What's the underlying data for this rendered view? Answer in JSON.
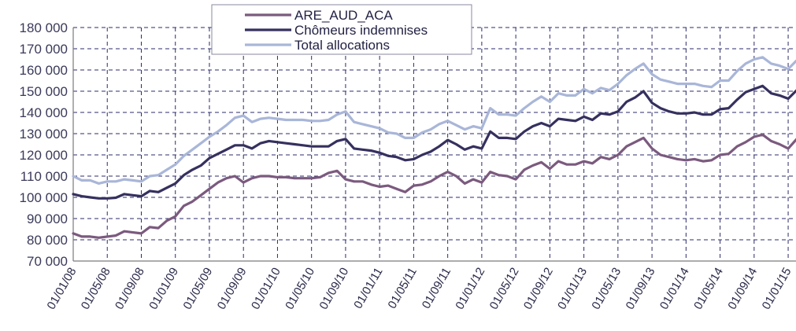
{
  "chart_data": {
    "type": "line",
    "title": "",
    "xlabel": "",
    "ylabel": "",
    "ylim": [
      70000,
      180000
    ],
    "y_ticks": [
      "70 000",
      "80 000",
      "90 000",
      "100 000",
      "110 000",
      "120 000",
      "130 000",
      "140 000",
      "150 000",
      "160 000",
      "170 000",
      "180 000"
    ],
    "x_ticks": [
      "01/01/08",
      "01/05/08",
      "01/09/08",
      "01/01/09",
      "01/05/09",
      "01/09/09",
      "01/01/10",
      "01/05/10",
      "01/09/10",
      "01/01/11",
      "01/05/11",
      "01/09/11",
      "01/01/12",
      "01/05/12",
      "01/09/12",
      "01/01/13",
      "01/05/13",
      "01/09/13",
      "01/01/14",
      "01/05/14",
      "01/09/14",
      "01/01/15"
    ],
    "grid": true,
    "legend_position": "top-center",
    "series": [
      {
        "name": "ARE_AUD_ACA",
        "color": "#7b5a7e",
        "values": [
          83000,
          81500,
          81500,
          81000,
          81500,
          82000,
          84000,
          83500,
          83000,
          86000,
          85500,
          89000,
          91000,
          96000,
          98000,
          101000,
          104000,
          107000,
          109000,
          110000,
          107000,
          109000,
          110000,
          110000,
          109500,
          109500,
          109000,
          109000,
          109000,
          109500,
          111500,
          112500,
          108500,
          107500,
          107500,
          106000,
          105000,
          105500,
          104000,
          102500,
          105500,
          106000,
          107500,
          110000,
          112000,
          110000,
          106500,
          108500,
          107000,
          112000,
          110500,
          110000,
          108500,
          113000,
          115000,
          116500,
          113500,
          117000,
          115500,
          115500,
          117000,
          116000,
          119000,
          118000,
          120000,
          124000,
          126000,
          128000,
          123000,
          120000,
          119000,
          118000,
          117500,
          118000,
          117000,
          117500,
          120000,
          120500,
          124000,
          126000,
          128500,
          129500,
          126500,
          125000,
          123000,
          127500,
          129500,
          130000,
          128500,
          126000,
          131500
        ]
      },
      {
        "name": "Chômeurs indemnises",
        "color": "#35305e",
        "values": [
          101500,
          100500,
          100000,
          99500,
          99500,
          99800,
          101500,
          101000,
          100500,
          103000,
          102500,
          104500,
          106500,
          110500,
          113000,
          115000,
          118500,
          120500,
          122500,
          124500,
          124500,
          123000,
          125500,
          126500,
          126000,
          125500,
          125000,
          124500,
          124000,
          124000,
          124000,
          126500,
          127500,
          123000,
          122500,
          122000,
          121000,
          119500,
          119000,
          117500,
          118000,
          120000,
          121500,
          124000,
          127000,
          125000,
          122500,
          124000,
          123000,
          131000,
          128000,
          128000,
          127500,
          131000,
          133500,
          135000,
          133500,
          137000,
          136500,
          136000,
          138000,
          136500,
          139500,
          139000,
          140500,
          145000,
          147000,
          150000,
          144500,
          142000,
          140500,
          139500,
          139500,
          140000,
          139000,
          139000,
          141500,
          142000,
          146000,
          149500,
          151000,
          152500,
          149000,
          148000,
          146500,
          150500,
          152000,
          152000,
          151500,
          148500,
          153500
        ]
      },
      {
        "name": "Total allocations",
        "color": "#a9b6d8",
        "values": [
          110000,
          108000,
          108000,
          106500,
          107500,
          107500,
          108500,
          108000,
          107500,
          110000,
          110500,
          113000,
          115500,
          119500,
          122500,
          125500,
          128500,
          131000,
          134000,
          137500,
          138500,
          135500,
          137000,
          137500,
          137000,
          136500,
          136500,
          136500,
          136000,
          136000,
          136500,
          139000,
          140500,
          135500,
          134500,
          133500,
          132500,
          130500,
          130000,
          128000,
          128000,
          130500,
          132000,
          134500,
          136000,
          134000,
          132000,
          133500,
          132500,
          142000,
          139000,
          139000,
          138500,
          142000,
          145000,
          147500,
          145000,
          149000,
          148000,
          148000,
          151000,
          149000,
          151500,
          150500,
          153500,
          157500,
          160500,
          163000,
          158000,
          155500,
          154500,
          153500,
          153500,
          153500,
          152500,
          152000,
          155000,
          155000,
          159500,
          163000,
          165000,
          166000,
          163000,
          162000,
          160500,
          164500,
          165000,
          164500,
          164000,
          160500,
          166500
        ]
      }
    ]
  }
}
